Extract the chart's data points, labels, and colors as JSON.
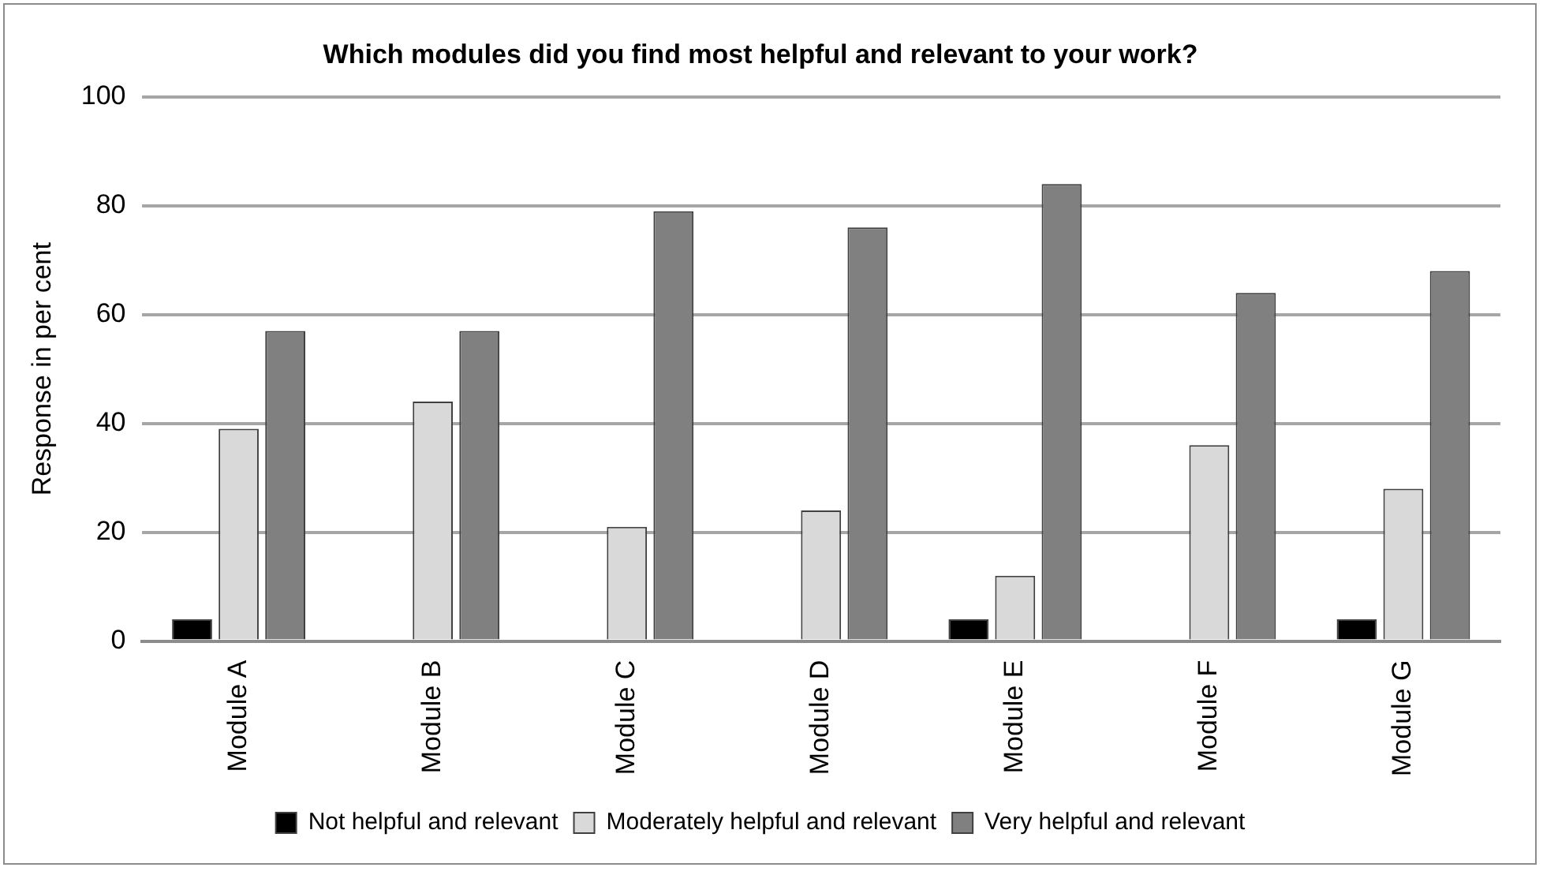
{
  "chart_data": {
    "type": "bar",
    "title": "Which modules did you find most helpful and relevant to your work?",
    "ylabel": "Response in per cent",
    "categories": [
      "Module A",
      "Module B",
      "Module C",
      "Module D",
      "Module E",
      "Module F",
      "Module G"
    ],
    "series": [
      {
        "name": "Not helpful and relevant",
        "color": "#000000",
        "values": [
          4,
          0,
          0,
          0,
          4,
          0,
          4
        ]
      },
      {
        "name": "Moderately helpful and relevant",
        "color": "#d9d9d9",
        "values": [
          39,
          44,
          21,
          24,
          12,
          36,
          28
        ]
      },
      {
        "name": "Very helpful and relevant",
        "color": "#808080",
        "values": [
          57,
          57,
          79,
          76,
          84,
          64,
          68
        ]
      }
    ],
    "ylim": [
      0,
      100
    ],
    "yticks": [
      0,
      20,
      40,
      60,
      80,
      100
    ],
    "grid": "y",
    "legend": "bottom"
  }
}
